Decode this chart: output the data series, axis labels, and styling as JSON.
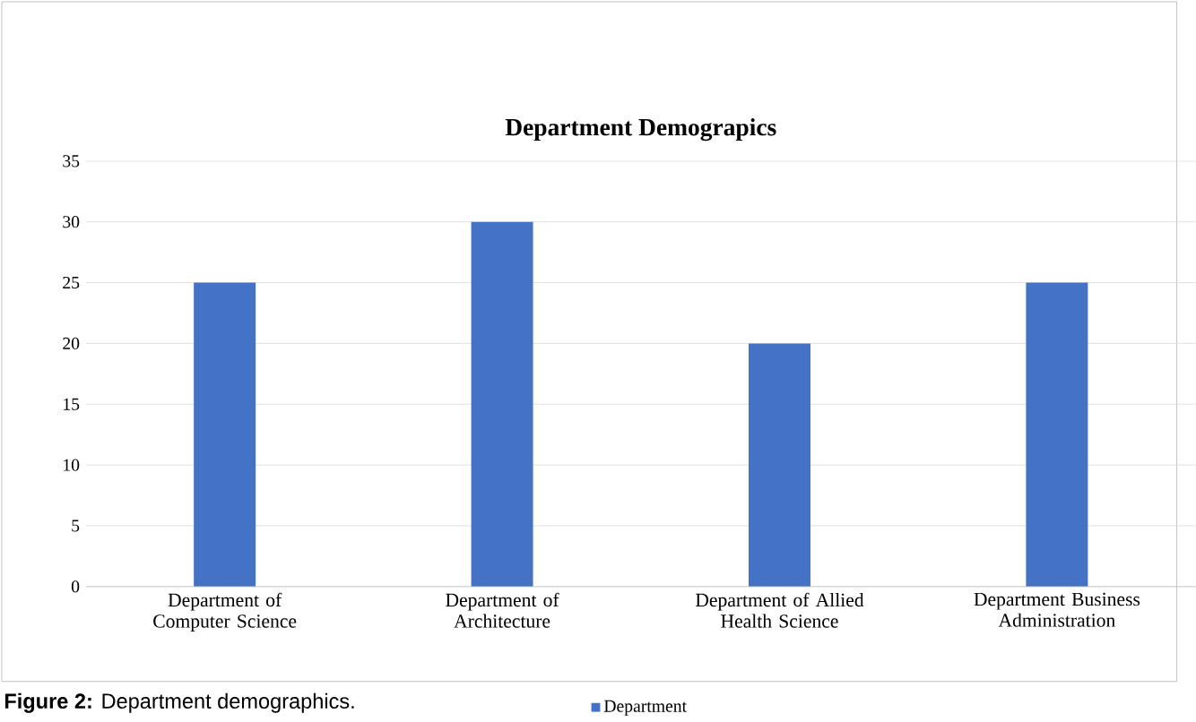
{
  "chart_data": {
    "type": "bar",
    "title": "Department Demograpics",
    "categories": [
      "Department of Computer Science",
      "Department of Architecture",
      "Department of Allied Health Science",
      "Department Business Administration"
    ],
    "series": [
      {
        "name": "Department",
        "color": "#4472c4",
        "values": [
          25,
          30,
          20,
          25
        ]
      }
    ],
    "ylim": [
      0,
      35
    ],
    "yticks": [
      0,
      5,
      10,
      15,
      20,
      25,
      30,
      35
    ],
    "grid": "y",
    "legend": "bottom",
    "annotations": [
      "**Figure 2:** Department demographics."
    ]
  }
}
